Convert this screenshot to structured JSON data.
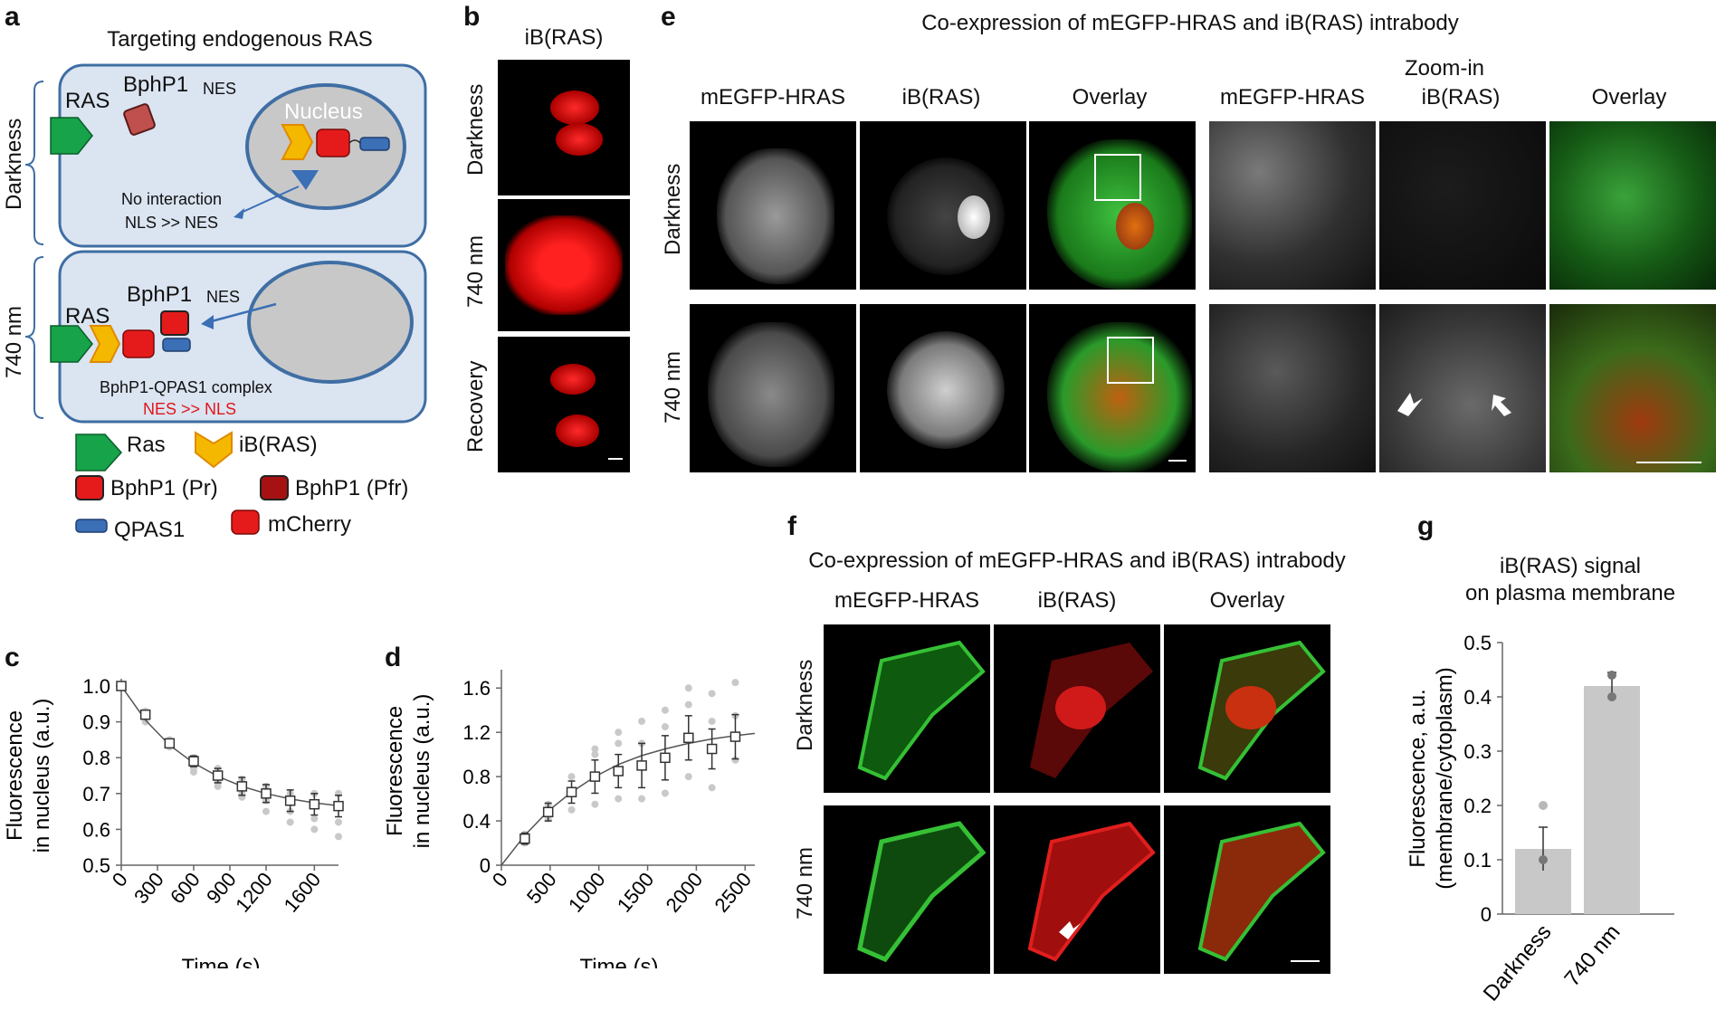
{
  "panels": {
    "a": {
      "letter": "a",
      "title": "Targeting endogenous RAS",
      "row_darkness": "Darkness",
      "row_740": "740 nm",
      "ras": "RAS",
      "bphp1": "BphP1",
      "nes": "NES",
      "nucleus": "Nucleus",
      "no_interaction": "No interaction",
      "nls_nes": "NLS >> NES",
      "complex": "BphP1-QPAS1 complex",
      "nes_nls": "NES >> NLS",
      "legend": {
        "ras": "Ras",
        "ib": "iB(RAS)",
        "bphp1_pr": "BphP1 (Pr)",
        "bphp1_pfr": "BphP1 (Pfr)",
        "qpas1": "QPAS1",
        "mcherry": "mCherry"
      },
      "colors": {
        "cell_fill": "#dbe4f1",
        "cell_border": "#3f6ea3",
        "nucleus_fill": "#c8c8c8",
        "ras_green": "#16a34a",
        "ib_yellow": "#f5b800",
        "mcherry_red": "#e51b1b",
        "qpas_blue": "#3b6fb6"
      }
    },
    "b": {
      "letter": "b",
      "title": "iB(RAS)",
      "rows": [
        "Darkness",
        "740 nm",
        "Recovery"
      ]
    },
    "e": {
      "letter": "e",
      "title": "Co-expression of mEGFP-HRAS and iB(RAS) intrabody",
      "cols": [
        "mEGFP-HRAS",
        "iB(RAS)",
        "Overlay",
        "mEGFP-HRAS",
        "iB(RAS)",
        "Overlay"
      ],
      "zoom": "Zoom-in",
      "rows": [
        "Darkness",
        "740 nm"
      ]
    },
    "f": {
      "letter": "f",
      "title": "Co-expression of mEGFP-HRAS and iB(RAS) intrabody",
      "cols": [
        "mEGFP-HRAS",
        "iB(RAS)",
        "Overlay"
      ],
      "rows": [
        "Darkness",
        "740 nm"
      ]
    },
    "c": {
      "letter": "c"
    },
    "d": {
      "letter": "d"
    },
    "g": {
      "letter": "g",
      "title_line1": "iB(RAS) signal",
      "title_line2": "on plasma membrane"
    }
  },
  "chart_data": [
    {
      "id": "c",
      "type": "line",
      "xlabel": "Time (s)",
      "ylabel_line1": "Fluorescence",
      "ylabel_line2": "in nucleus (a.u.)",
      "xticks": [
        0,
        300,
        600,
        900,
        1200,
        1600
      ],
      "yticks": [
        0.5,
        0.6,
        0.7,
        0.8,
        0.9,
        1.0
      ],
      "ytick_labels": [
        "0.5",
        "0.6",
        "0.7",
        "0.8",
        "0.9",
        "1.0"
      ],
      "xlim": [
        0,
        1800
      ],
      "ylim": [
        0.5,
        1.0
      ],
      "series": [
        {
          "x": [
            0,
            200,
            400,
            600,
            800,
            1000,
            1200,
            1400,
            1600,
            1800
          ],
          "values": [
            1.0,
            0.92,
            0.84,
            0.79,
            0.75,
            0.72,
            0.7,
            0.68,
            0.67,
            0.665
          ],
          "err": [
            0,
            0.01,
            0.01,
            0.015,
            0.02,
            0.025,
            0.025,
            0.03,
            0.03,
            0.03
          ]
        }
      ],
      "fit": {
        "x": [
          0,
          200,
          400,
          600,
          800,
          1000,
          1200,
          1400,
          1600,
          1800
        ],
        "values": [
          1.0,
          0.905,
          0.835,
          0.785,
          0.748,
          0.72,
          0.7,
          0.685,
          0.674,
          0.666
        ]
      },
      "points": [
        [
          0,
          1.0
        ],
        [
          200,
          0.93
        ],
        [
          200,
          0.91
        ],
        [
          200,
          0.9
        ],
        [
          400,
          0.85
        ],
        [
          400,
          0.83
        ],
        [
          600,
          0.8
        ],
        [
          600,
          0.77
        ],
        [
          600,
          0.76
        ],
        [
          800,
          0.77
        ],
        [
          800,
          0.73
        ],
        [
          800,
          0.72
        ],
        [
          1000,
          0.74
        ],
        [
          1000,
          0.69
        ],
        [
          1000,
          0.7
        ],
        [
          1200,
          0.72
        ],
        [
          1200,
          0.65
        ],
        [
          1200,
          0.68
        ],
        [
          1400,
          0.7
        ],
        [
          1400,
          0.65
        ],
        [
          1400,
          0.62
        ],
        [
          1600,
          0.7
        ],
        [
          1600,
          0.63
        ],
        [
          1600,
          0.6
        ],
        [
          1800,
          0.7
        ],
        [
          1800,
          0.62
        ],
        [
          1800,
          0.58
        ]
      ]
    },
    {
      "id": "d",
      "type": "line",
      "xlabel": "Time (s)",
      "ylabel_line1": "Fluorescence",
      "ylabel_line2": "in nucleus (a.u.)",
      "xticks": [
        0,
        500,
        1000,
        1500,
        2000,
        2500
      ],
      "yticks": [
        0,
        0.4,
        0.8,
        1.2,
        1.6
      ],
      "ytick_labels": [
        "0",
        "0.4",
        "0.8",
        "1.2",
        "1.6"
      ],
      "xlim": [
        0,
        2600
      ],
      "ylim": [
        0,
        1.7
      ],
      "series": [
        {
          "x": [
            240,
            480,
            720,
            960,
            1200,
            1440,
            1680,
            1920,
            2160,
            2400
          ],
          "values": [
            0.24,
            0.48,
            0.66,
            0.8,
            0.85,
            0.9,
            0.97,
            1.15,
            1.05,
            1.16
          ],
          "err": [
            0.05,
            0.08,
            0.1,
            0.15,
            0.15,
            0.2,
            0.2,
            0.2,
            0.18,
            0.2
          ]
        }
      ],
      "fit": {
        "x": [
          0,
          240,
          480,
          720,
          960,
          1200,
          1440,
          1680,
          1920,
          2160,
          2400,
          2600
        ],
        "values": [
          0,
          0.27,
          0.49,
          0.66,
          0.8,
          0.91,
          0.99,
          1.05,
          1.1,
          1.14,
          1.17,
          1.19
        ]
      },
      "points": [
        [
          240,
          0.2
        ],
        [
          240,
          0.28
        ],
        [
          480,
          0.42
        ],
        [
          480,
          0.55
        ],
        [
          720,
          0.5
        ],
        [
          720,
          0.8
        ],
        [
          960,
          0.55
        ],
        [
          960,
          1.05
        ],
        [
          960,
          1.0
        ],
        [
          1200,
          0.6
        ],
        [
          1200,
          1.1
        ],
        [
          1200,
          1.2
        ],
        [
          1440,
          0.6
        ],
        [
          1440,
          1.3
        ],
        [
          1440,
          1.1
        ],
        [
          1680,
          0.65
        ],
        [
          1680,
          1.4
        ],
        [
          1680,
          1.25
        ],
        [
          1920,
          0.8
        ],
        [
          1920,
          1.45
        ],
        [
          1920,
          1.6
        ],
        [
          2160,
          0.7
        ],
        [
          2160,
          1.55
        ],
        [
          2160,
          1.3
        ],
        [
          2400,
          0.95
        ],
        [
          2400,
          1.65
        ],
        [
          2400,
          1.35
        ]
      ]
    },
    {
      "id": "g",
      "type": "bar",
      "ylabel_line1": "Fluorescence, a.u.",
      "ylabel_line2": "(membrane/cytoplasm)",
      "categories": [
        "Darkness",
        "740 nm"
      ],
      "values": [
        0.12,
        0.42
      ],
      "err": [
        0.04,
        0.025
      ],
      "points": [
        [
          0,
          0.1
        ],
        [
          0,
          0.2
        ],
        [
          1,
          0.4
        ],
        [
          1,
          0.44
        ]
      ],
      "yticks": [
        0,
        0.1,
        0.2,
        0.3,
        0.4,
        0.5
      ],
      "ytick_labels": [
        "0",
        "0.1",
        "0.2",
        "0.3",
        "0.4",
        "0.5"
      ],
      "ylim": [
        0,
        0.5
      ]
    }
  ]
}
